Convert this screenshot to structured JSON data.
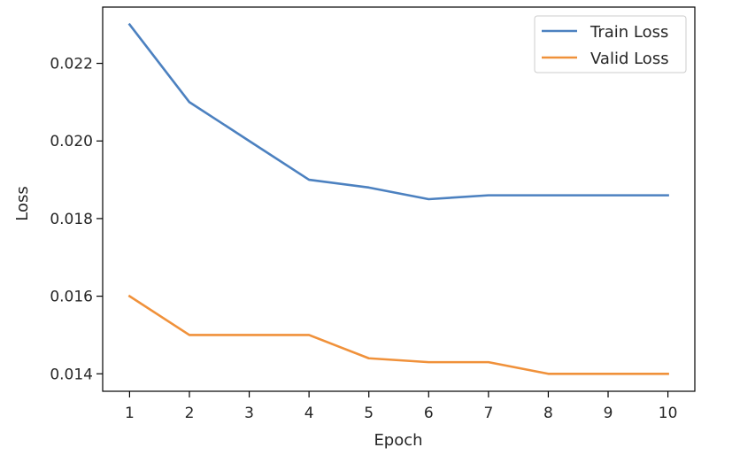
{
  "chart_data": {
    "type": "line",
    "title": "",
    "xlabel": "Epoch",
    "ylabel": "Loss",
    "x": [
      1,
      2,
      3,
      4,
      5,
      6,
      7,
      8,
      9,
      10
    ],
    "xlim": [
      0.55,
      10.45
    ],
    "ylim": [
      0.01355,
      0.02345
    ],
    "xticks": [
      1,
      2,
      3,
      4,
      5,
      6,
      7,
      8,
      9,
      10
    ],
    "yticks": [
      0.014,
      0.016,
      0.018,
      0.02,
      0.022
    ],
    "ytick_labels": [
      "0.014",
      "0.016",
      "0.018",
      "0.020",
      "0.022"
    ],
    "grid": false,
    "legend_position": "top-right",
    "series": [
      {
        "name": "Train Loss",
        "color": "#4c81c0",
        "values": [
          0.023,
          0.021,
          0.02,
          0.019,
          0.0188,
          0.0185,
          0.0186,
          0.0186,
          0.0186,
          0.0186
        ]
      },
      {
        "name": "Valid Loss",
        "color": "#f0913a",
        "values": [
          0.016,
          0.015,
          0.015,
          0.015,
          0.0144,
          0.0143,
          0.0143,
          0.014,
          0.014,
          0.014
        ]
      }
    ]
  }
}
